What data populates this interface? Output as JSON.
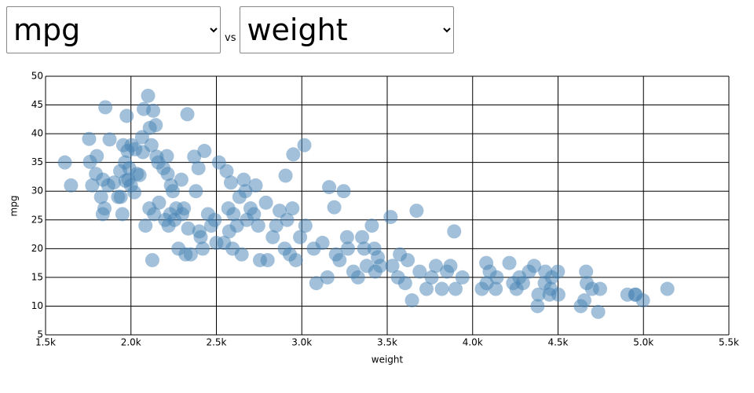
{
  "controls": {
    "y_select": "mpg",
    "vs": "vs",
    "x_select": "weight"
  },
  "chart_data": {
    "type": "scatter",
    "x_label": "weight",
    "y_label": "mpg",
    "grid": true,
    "xlim": [
      1500,
      5500
    ],
    "xticks": [
      {
        "value": 1500,
        "label": "1.5k"
      },
      {
        "value": 2000,
        "label": "2.0k"
      },
      {
        "value": 2500,
        "label": "2.5k"
      },
      {
        "value": 3000,
        "label": "3.0k"
      },
      {
        "value": 3500,
        "label": "3.5k"
      },
      {
        "value": 4000,
        "label": "4.0k"
      },
      {
        "value": 4500,
        "label": "4.5k"
      },
      {
        "value": 5000,
        "label": "5.0k"
      },
      {
        "value": 5500,
        "label": "5.5k"
      }
    ],
    "ylim": [
      5,
      50
    ],
    "yticks": [
      5,
      10,
      15,
      20,
      25,
      30,
      35,
      40,
      45,
      50
    ],
    "series": [
      {
        "color": "#4682b4",
        "x": [
          1613,
          1649,
          1755,
          1760,
          1773,
          1795,
          1800,
          1825,
          1835,
          1836,
          1845,
          1850,
          1867,
          1875,
          1900,
          1925,
          1937,
          1940,
          1950,
          1955,
          1965,
          1968,
          1975,
          1980,
          1985,
          1990,
          2000,
          2003,
          2020,
          2025,
          2035,
          2050,
          2065,
          2070,
          2075,
          2085,
          2100,
          2108,
          2110,
          2120,
          2125,
          2130,
          2135,
          2145,
          2150,
          2160,
          2164,
          2190,
          2200,
          2210,
          2215,
          2220,
          2230,
          2234,
          2245,
          2255,
          2265,
          2278,
          2295,
          2300,
          2310,
          2320,
          2330,
          2335,
          2350,
          2370,
          2380,
          2395,
          2400,
          2408,
          2420,
          2430,
          2451,
          2470,
          2490,
          2500,
          2515,
          2545,
          2560,
          2570,
          2575,
          2585,
          2595,
          2600,
          2620,
          2635,
          2648,
          2660,
          2670,
          2678,
          2700,
          2720,
          2730,
          2745,
          2755,
          2790,
          2800,
          2830,
          2850,
          2870,
          2900,
          2905,
          2914,
          2930,
          2945,
          2950,
          2965,
          2990,
          3015,
          3021,
          3070,
          3085,
          3121,
          3150,
          3160,
          3190,
          3200,
          3221,
          3245,
          3265,
          3270,
          3302,
          3329,
          3353,
          3365,
          3380,
          3410,
          3425,
          3430,
          3445,
          3459,
          3520,
          3530,
          3563,
          3574,
          3605,
          3620,
          3645,
          3672,
          3690,
          3730,
          3760,
          3785,
          3820,
          3850,
          3870,
          3892,
          3900,
          3940,
          4054,
          4080,
          4082,
          4100,
          4135,
          4141,
          4215,
          4237,
          4257,
          4274,
          4295,
          4330,
          4360,
          4380,
          4385,
          4422,
          4425,
          4450,
          4457,
          4464,
          4499,
          4502,
          4633,
          4654,
          4664,
          4668,
          4699,
          4735,
          4746,
          4906,
          4951,
          4955,
          4997,
          5140
        ],
        "values": [
          35,
          31,
          39.1,
          35.1,
          31,
          33,
          36.1,
          29,
          26,
          32,
          27,
          44.6,
          31,
          39,
          31.5,
          29,
          33.5,
          29,
          26,
          38,
          35,
          31.8,
          43.1,
          37,
          32,
          34,
          31,
          38,
          29.8,
          37.3,
          33,
          32.8,
          39.4,
          36.8,
          44.3,
          24,
          46.6,
          27,
          41,
          38,
          18,
          44,
          26,
          41.5,
          36,
          35,
          28,
          34,
          25,
          36.1,
          33,
          24,
          26,
          31,
          30,
          25,
          27,
          20,
          32,
          26,
          27,
          19,
          43.4,
          23.5,
          19,
          36,
          30,
          34,
          23,
          22,
          20,
          37,
          26,
          24,
          25,
          21,
          35,
          21,
          33.5,
          27,
          23,
          31.5,
          20,
          26,
          24,
          29,
          19,
          32,
          30,
          25,
          27,
          26,
          31,
          24,
          18,
          28,
          18,
          22,
          24,
          26.6,
          20,
          32.7,
          25,
          19,
          27,
          36.4,
          18,
          22,
          38,
          24,
          20,
          14,
          21,
          15,
          30.7,
          27.2,
          19,
          18,
          30,
          22,
          20,
          16,
          15,
          22,
          20,
          17,
          24,
          20,
          16,
          18.5,
          17,
          25.5,
          17,
          15,
          19,
          14,
          18,
          11,
          26.6,
          16,
          13,
          15,
          17,
          13,
          16,
          17,
          23,
          13,
          15,
          13,
          17.5,
          14,
          16,
          13,
          15,
          17.5,
          14,
          13,
          15,
          14,
          16,
          17,
          10,
          12,
          14,
          16,
          12,
          13,
          15,
          16,
          12,
          10,
          11,
          16,
          14,
          13,
          9,
          13,
          12,
          12,
          12,
          11,
          13
        ]
      }
    ]
  }
}
